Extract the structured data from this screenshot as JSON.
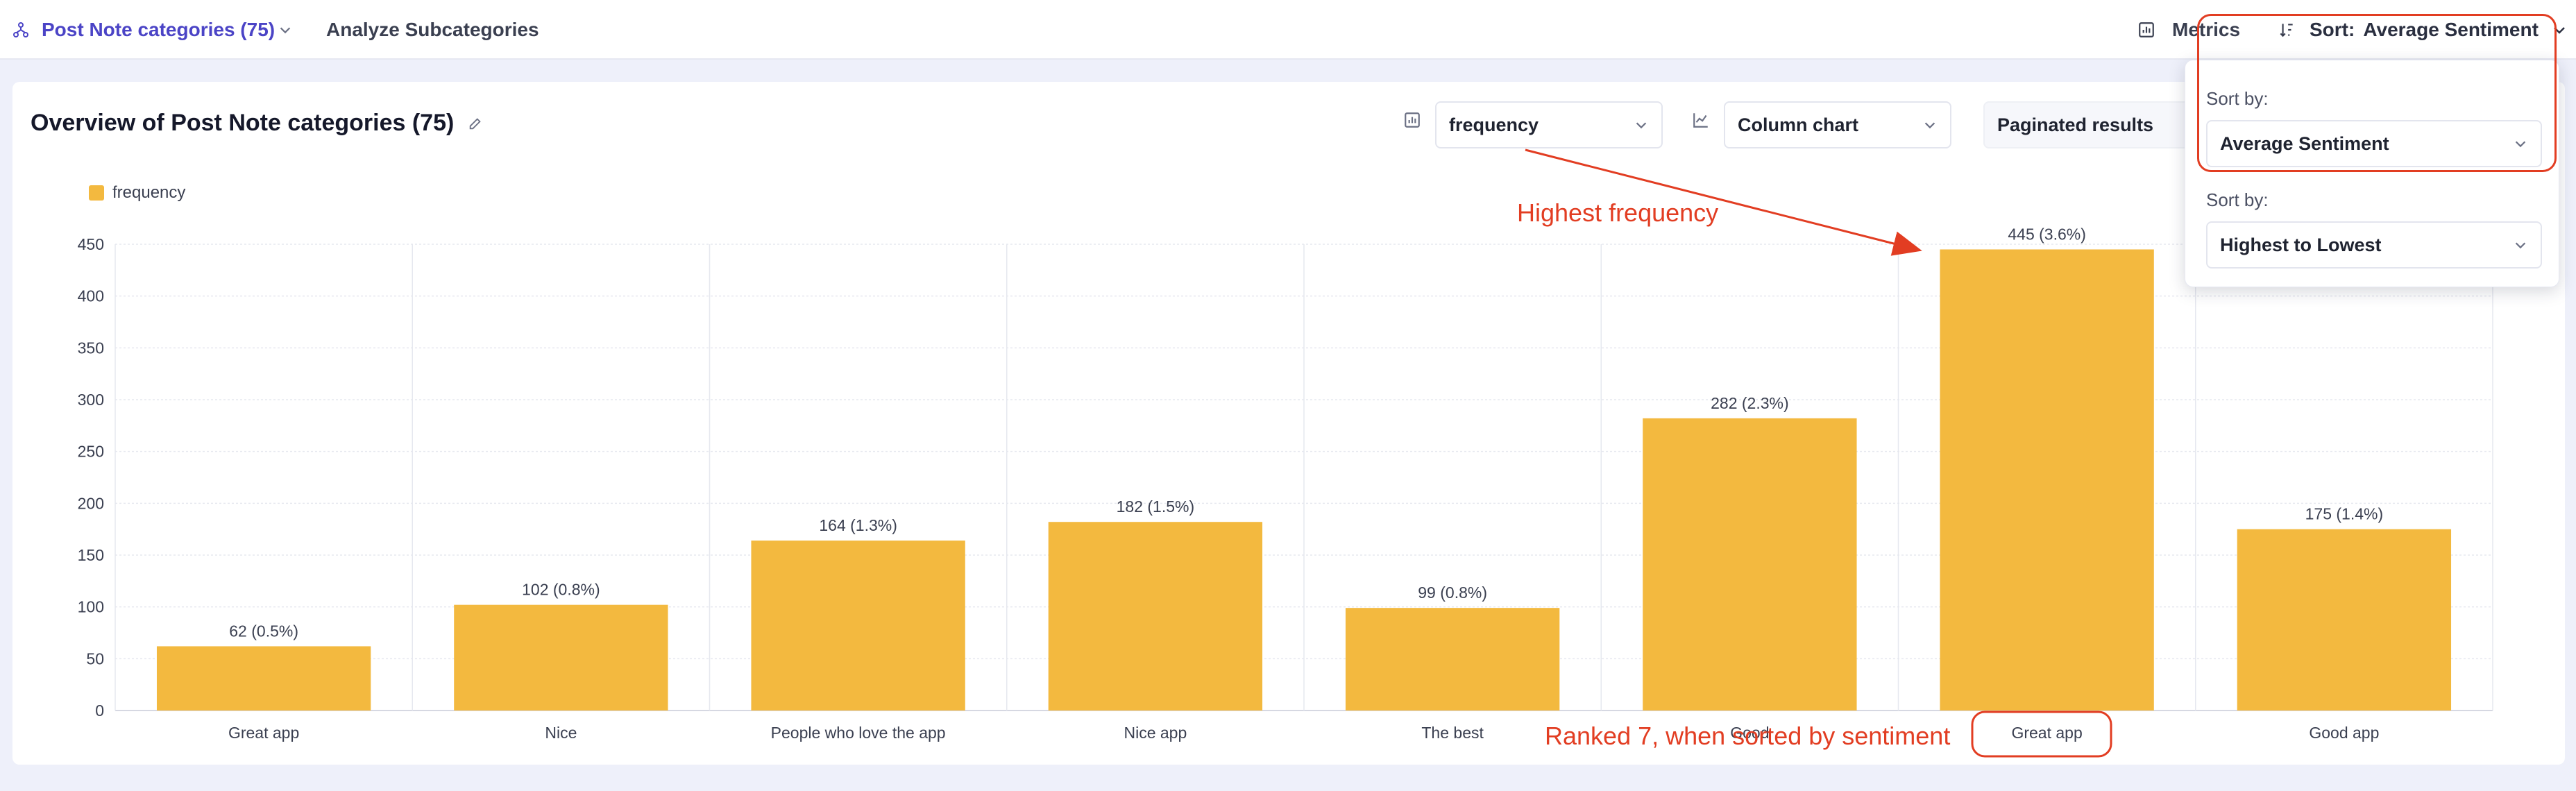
{
  "topbar": {
    "breadcrumb": "Post Note categories (75)",
    "analyze": "Analyze Subcategories",
    "metrics": "Metrics",
    "sort_prefix": "Sort:",
    "sort_value": "Average Sentiment"
  },
  "card": {
    "title": "Overview of Post Note categories (75)",
    "metric_select": "frequency",
    "chart_type_select": "Column chart",
    "pagination_select": "Paginated results"
  },
  "sort_popover": {
    "label1": "Sort by:",
    "select1": "Average Sentiment",
    "label2": "Sort by:",
    "select2": "Highest to Lowest"
  },
  "annotations": {
    "highest": "Highest frequency",
    "ranked": "Ranked 7, when sorted by sentiment"
  },
  "colors": {
    "accent": "#4b44c6",
    "bar": "#f3b93f",
    "annotation": "#e23d22"
  },
  "chart_data": {
    "type": "bar",
    "legend": [
      "frequency"
    ],
    "categories": [
      "Great app",
      "Nice",
      "People who love the app",
      "Nice app",
      "The best",
      "Good",
      "Great app",
      "Good app"
    ],
    "values": [
      62,
      102,
      164,
      182,
      99,
      282,
      445,
      175
    ],
    "data_labels": [
      "62 (0.5%)",
      "102 (0.8%)",
      "164 (1.3%)",
      "182 (1.5%)",
      "99 (0.8%)",
      "282 (2.3%)",
      "445 (3.6%)",
      "175 (1.4%)"
    ],
    "yticks": [
      0,
      50,
      100,
      150,
      200,
      250,
      300,
      350,
      400,
      450
    ],
    "ylim": [
      0,
      450
    ],
    "grid": true,
    "legend_position": "top-left"
  }
}
